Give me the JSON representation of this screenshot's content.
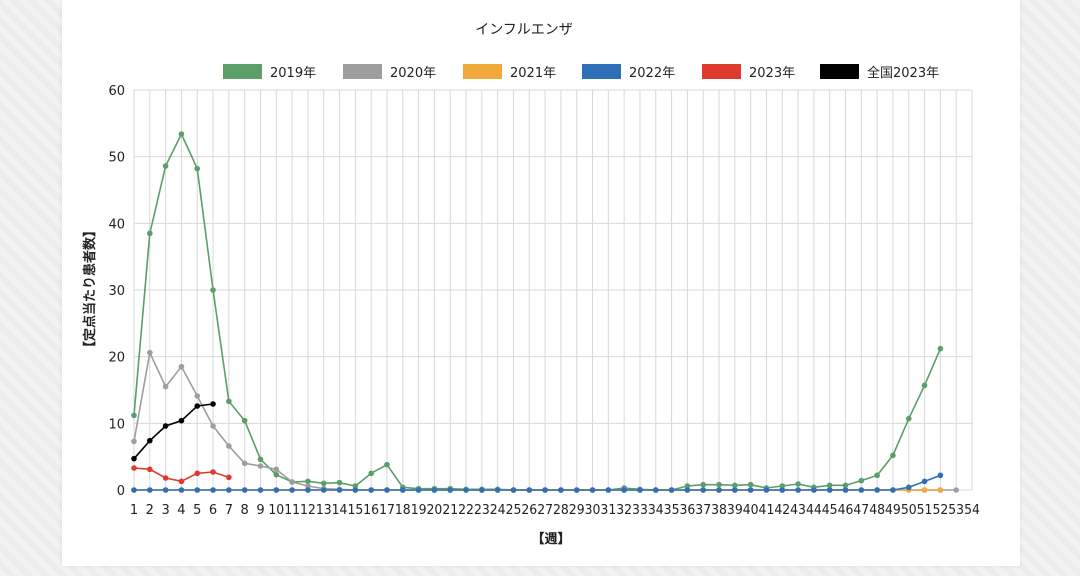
{
  "chart_data": {
    "type": "line",
    "title": "インフルエンザ",
    "xlabel": "【週】",
    "ylabel": "【定点当たり患者数】",
    "ylim": [
      0,
      60
    ],
    "yticks": [
      "0",
      "10",
      "20",
      "30",
      "40",
      "50",
      "60"
    ],
    "categories": [
      "1",
      "2",
      "3",
      "4",
      "5",
      "6",
      "7",
      "8",
      "9",
      "10",
      "11",
      "12",
      "13",
      "14",
      "15",
      "16",
      "17",
      "18",
      "19",
      "20",
      "21",
      "22",
      "23",
      "24",
      "25",
      "26",
      "27",
      "28",
      "29",
      "30",
      "31",
      "32",
      "33",
      "34",
      "35",
      "36",
      "37",
      "38",
      "39",
      "40",
      "41",
      "42",
      "43",
      "44",
      "45",
      "46",
      "47",
      "48",
      "49",
      "50",
      "51",
      "52",
      "53",
      "54"
    ],
    "grid": true,
    "legend_position": "top",
    "series": [
      {
        "name": "2019年",
        "color": "#5a9e6a",
        "values": [
          11.2,
          38.5,
          48.6,
          53.4,
          48.2,
          30.0,
          13.3,
          10.4,
          4.6,
          2.3,
          1.2,
          1.3,
          1.0,
          1.1,
          0.6,
          2.5,
          3.8,
          0.4,
          0.2,
          0.2,
          0.2,
          0.1,
          0.1,
          0.1,
          0.0,
          0.0,
          0.0,
          0.0,
          0.0,
          0.0,
          0.0,
          0.3,
          0.1,
          0.0,
          0.0,
          0.6,
          0.8,
          0.8,
          0.7,
          0.8,
          0.3,
          0.6,
          0.9,
          0.4,
          0.7,
          0.7,
          1.4,
          2.2,
          5.2,
          10.7,
          15.7,
          21.2,
          null,
          null
        ]
      },
      {
        "name": "2020年",
        "color": "#9e9e9e",
        "values": [
          7.3,
          20.6,
          15.5,
          18.5,
          14.1,
          9.6,
          6.6,
          4.0,
          3.6,
          3.1,
          1.2,
          0.6,
          0.2,
          0.1,
          0.0,
          0.0,
          0.0,
          0.0,
          0.0,
          0.0,
          0.0,
          0.0,
          0.0,
          0.0,
          0.0,
          0.0,
          0.0,
          0.0,
          0.0,
          0.0,
          0.0,
          0.0,
          0.0,
          0.0,
          0.0,
          0.0,
          0.0,
          0.0,
          0.0,
          0.0,
          0.0,
          0.0,
          0.0,
          0.0,
          0.0,
          0.0,
          0.0,
          0.0,
          0.0,
          0.0,
          0.0,
          0.0,
          0.0,
          null
        ]
      },
      {
        "name": "2021年",
        "color": "#f2a93b",
        "values": [
          0,
          0,
          0,
          0,
          0,
          0,
          0,
          0,
          0,
          0,
          0,
          0,
          0,
          0,
          0,
          0,
          0,
          0,
          0,
          0,
          0,
          0,
          0,
          0,
          0,
          0,
          0,
          0,
          0,
          0,
          0,
          0,
          0,
          0,
          0,
          0,
          0,
          0,
          0,
          0,
          0,
          0,
          0,
          0,
          0,
          0,
          0,
          0,
          0,
          0,
          0,
          0,
          null,
          null
        ]
      },
      {
        "name": "2022年",
        "color": "#2f6fb7",
        "values": [
          0,
          0,
          0,
          0,
          0,
          0,
          0,
          0,
          0,
          0,
          0,
          0,
          0,
          0,
          0,
          0,
          0,
          0,
          0,
          0,
          0,
          0,
          0,
          0,
          0,
          0,
          0,
          0,
          0,
          0,
          0,
          0,
          0,
          0,
          0,
          0,
          0,
          0,
          0,
          0,
          0,
          0,
          0,
          0,
          0,
          0,
          0,
          0,
          0,
          0.4,
          1.3,
          2.2,
          null,
          null
        ]
      },
      {
        "name": "2023年",
        "color": "#e03a2f",
        "values": [
          3.3,
          3.1,
          1.8,
          1.3,
          2.5,
          2.7,
          1.9,
          null,
          null,
          null,
          null,
          null,
          null,
          null,
          null,
          null,
          null,
          null,
          null,
          null,
          null,
          null,
          null,
          null,
          null,
          null,
          null,
          null,
          null,
          null,
          null,
          null,
          null,
          null,
          null,
          null,
          null,
          null,
          null,
          null,
          null,
          null,
          null,
          null,
          null,
          null,
          null,
          null,
          null,
          null,
          null,
          null,
          null,
          null
        ]
      },
      {
        "name": "全国2023年",
        "color": "#000000",
        "values": [
          4.7,
          7.4,
          9.6,
          10.4,
          12.6,
          12.9,
          null,
          null,
          null,
          null,
          null,
          null,
          null,
          null,
          null,
          null,
          null,
          null,
          null,
          null,
          null,
          null,
          null,
          null,
          null,
          null,
          null,
          null,
          null,
          null,
          null,
          null,
          null,
          null,
          null,
          null,
          null,
          null,
          null,
          null,
          null,
          null,
          null,
          null,
          null,
          null,
          null,
          null,
          null,
          null,
          null,
          null,
          null,
          null
        ]
      }
    ]
  }
}
